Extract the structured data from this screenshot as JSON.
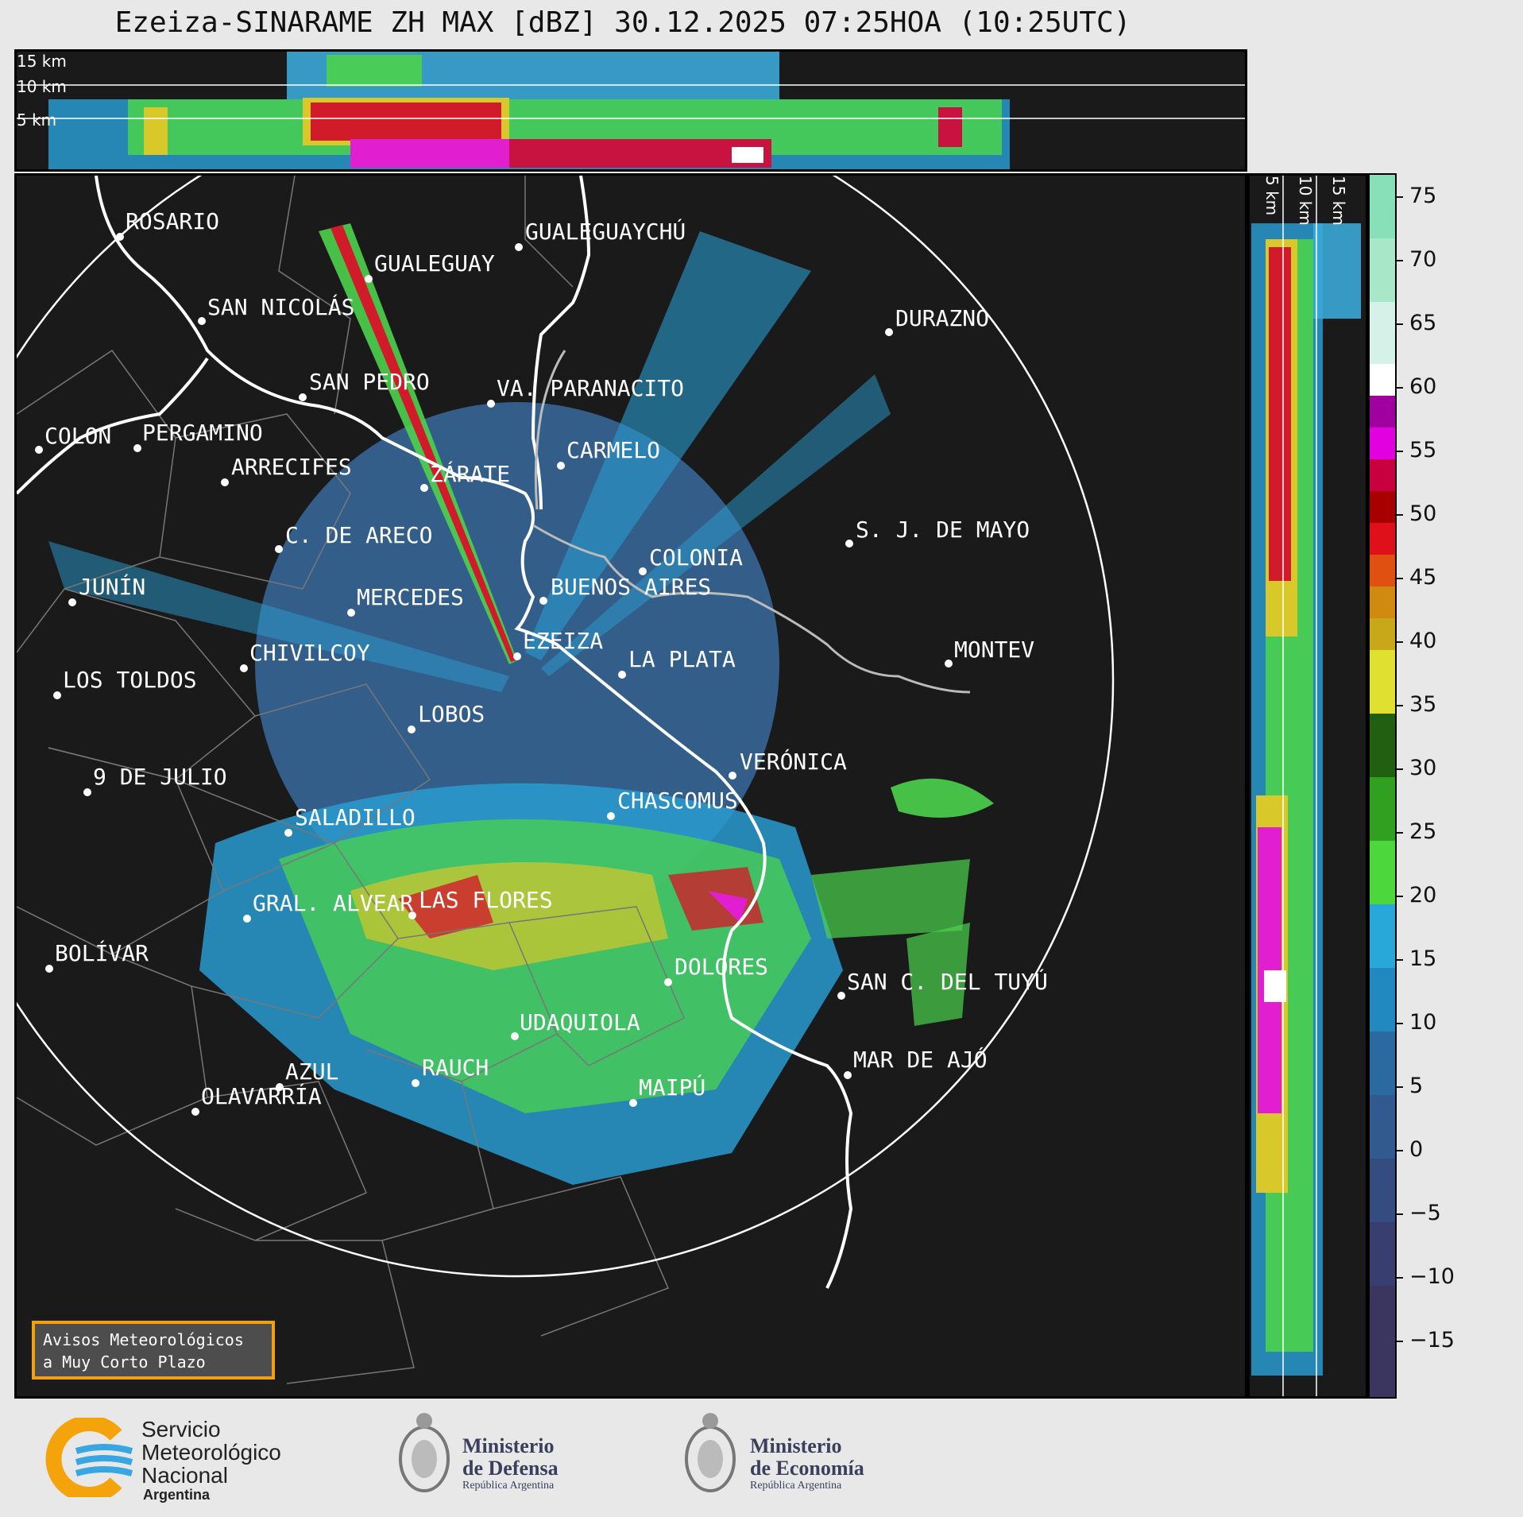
{
  "title": "Ezeiza-SINARAME ZH MAX [dBZ] 30.12.2025 07:25HOA (10:25UTC)",
  "top_panel": {
    "alt_labels": [
      "15 km",
      "10 km",
      "5 km"
    ]
  },
  "right_panel": {
    "alt_labels": [
      "5 km",
      "10 km",
      "15 km"
    ]
  },
  "colorbar": {
    "ticks": [
      "75",
      "70",
      "65",
      "60",
      "55",
      "50",
      "45",
      "40",
      "35",
      "30",
      "25",
      "20",
      "15",
      "10",
      "5",
      "0",
      "−5",
      "−10",
      "−15"
    ]
  },
  "cities": [
    {
      "name": "ROSARIO"
    },
    {
      "name": "GUALEGUAYCHÚ"
    },
    {
      "name": "GUALEGUAY"
    },
    {
      "name": "SAN NICOLÁS"
    },
    {
      "name": "DURAZNO"
    },
    {
      "name": "SAN PEDRO"
    },
    {
      "name": "VA. PARANACITO"
    },
    {
      "name": "COLON"
    },
    {
      "name": "PERGAMINO"
    },
    {
      "name": "CARMELO"
    },
    {
      "name": "ARRECIFES"
    },
    {
      "name": "ZÁRATE"
    },
    {
      "name": "S. J. DE MAYO"
    },
    {
      "name": "C. DE ARECO"
    },
    {
      "name": "COLONIA"
    },
    {
      "name": "JUNÍN"
    },
    {
      "name": "BUENOS AIRES"
    },
    {
      "name": "MERCEDES"
    },
    {
      "name": "EZEIZA"
    },
    {
      "name": "MONTEV"
    },
    {
      "name": "CHIVILCOY"
    },
    {
      "name": "LA PLATA"
    },
    {
      "name": "LOS TOLDOS"
    },
    {
      "name": "LOBOS"
    },
    {
      "name": "VERÓNICA"
    },
    {
      "name": "9 DE JULIO"
    },
    {
      "name": "CHASCOMUS"
    },
    {
      "name": "SALADILLO"
    },
    {
      "name": "GRAL. ALVEAR"
    },
    {
      "name": "LAS FLORES"
    },
    {
      "name": "BOLÍVAR"
    },
    {
      "name": "DOLORES"
    },
    {
      "name": "SAN C. DEL TUYÚ"
    },
    {
      "name": "UDAQUIOLA"
    },
    {
      "name": "MAR DE AJÓ"
    },
    {
      "name": "AZUL"
    },
    {
      "name": "RAUCH"
    },
    {
      "name": "OLAVARRÍA"
    },
    {
      "name": "MAIPÚ"
    }
  ],
  "warning_box": {
    "line1": "Avisos Meteorológicos",
    "line2": "a Muy Corto Plazo"
  },
  "footer": {
    "smn": {
      "line1": "Servicio",
      "line2": "Meteorológico",
      "line3": "Nacional",
      "line4": "Argentina"
    },
    "defensa": {
      "line1": "Ministerio",
      "line2": "de Defensa",
      "line3": "República Argentina"
    },
    "economia": {
      "line1": "Ministerio",
      "line2": "de Economía",
      "line3": "República Argentina"
    }
  }
}
